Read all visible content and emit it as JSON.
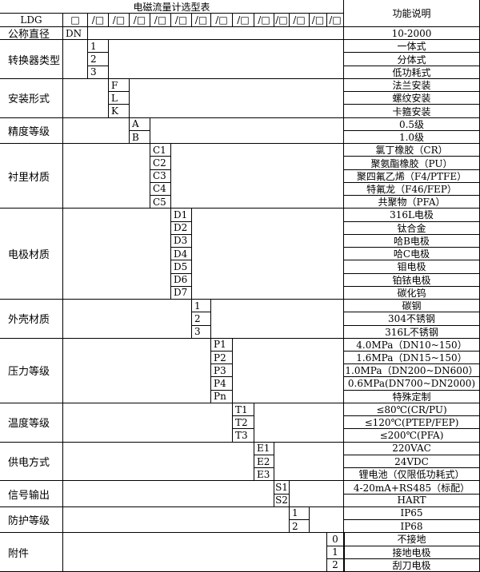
{
  "title": "电磁流量计选型表",
  "function_header": "功能说明",
  "model_prefix": "LDG",
  "slot_first": "□",
  "slot": "/□",
  "slot_count": 13,
  "nominal": {
    "label": "公称直径",
    "code": "DN",
    "description": "10-2000"
  },
  "groups": [
    {
      "label": "转换器类型",
      "codes": [
        "1",
        "2",
        "3"
      ],
      "descriptions": [
        "一体式",
        "分体式",
        "低功耗式"
      ]
    },
    {
      "label": "安装形式",
      "codes": [
        "F",
        "L",
        "K"
      ],
      "descriptions": [
        "法兰安装",
        "螺纹安装",
        "卡箍安装"
      ]
    },
    {
      "label": "精度等级",
      "codes": [
        "A",
        "B"
      ],
      "descriptions": [
        "0.5级",
        "1.0级"
      ]
    },
    {
      "label": "衬里材质",
      "codes": [
        "C1",
        "C2",
        "C3",
        "C4",
        "C5"
      ],
      "descriptions": [
        "氯丁橡胶（CR）",
        "聚氨酯橡胶（PU）",
        "聚四氟乙烯（F4/PTFE）",
        "特氟龙（F46/FEP）",
        "共聚物（PFA）"
      ]
    },
    {
      "label": "电极材质",
      "codes": [
        "D1",
        "D2",
        "D3",
        "D4",
        "D5",
        "D6",
        "D7"
      ],
      "descriptions": [
        "316L电极",
        "钛合金",
        "哈B电极",
        "哈C电极",
        "钼电极",
        "铂铱电极",
        "碳化钨"
      ]
    },
    {
      "label": "外壳材质",
      "codes": [
        "1",
        "2",
        "3"
      ],
      "descriptions": [
        "碳钢",
        "304不锈钢",
        "316L不锈钢"
      ]
    },
    {
      "label": "压力等级",
      "codes": [
        "P1",
        "P2",
        "P3",
        "P4",
        "Pn"
      ],
      "descriptions": [
        "4.0MPa（DN10~150）",
        "1.6MPa（DN15~150）",
        "1.0MPa（DN200~DN600）",
        "0.6MPa(DN700~DN2000)",
        "特殊定制"
      ]
    },
    {
      "label": "温度等级",
      "codes": [
        "T1",
        "T2",
        "T3"
      ],
      "descriptions": [
        "≤80℃(CR/PU)",
        "≤120℃(PTEP/FEP)",
        "≤200℃(PFA)"
      ]
    },
    {
      "label": "供电方式",
      "codes": [
        "E1",
        "E2",
        "E3"
      ],
      "descriptions": [
        "220VAC",
        "24VDC",
        "锂电池（仅限低功耗式）"
      ]
    },
    {
      "label": "信号输出",
      "codes": [
        "S1",
        "S2"
      ],
      "descriptions": [
        "4-20mA+RS485（标配）",
        "HART"
      ]
    },
    {
      "label": "防护等级",
      "codes": [
        "1",
        "2"
      ],
      "descriptions": [
        "IP65",
        "IP68"
      ]
    },
    {
      "label": "附件",
      "codes": [
        "0",
        "1",
        "2"
      ],
      "descriptions": [
        "不接地",
        "接地电极",
        "刮刀电极"
      ]
    }
  ]
}
